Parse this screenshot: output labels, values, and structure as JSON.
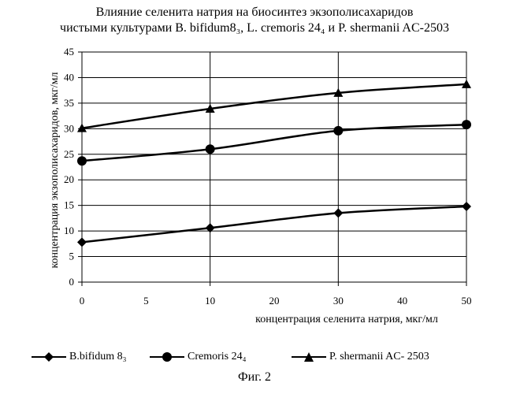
{
  "chart_data": {
    "type": "line",
    "title_lines": [
      "Влияние селенита натрия на биосинтез экзополисахаридов",
      "чистыми культурами B. bifidum8₃, L. cremoris 24₄ и P. shermanii AC-2503"
    ],
    "xlabel": "концентрация селенита натрия, мкг/мл",
    "ylabel": "концентрация экзополисахаридов, мкг/мл",
    "categories": [
      "0",
      "10",
      "30",
      "50"
    ],
    "x_ticks": [
      "0",
      "5",
      "10",
      "20",
      "30",
      "40",
      "50"
    ],
    "ylim": [
      0,
      45
    ],
    "y_ticks": [
      "0",
      "5",
      "10",
      "15",
      "20",
      "25",
      "30",
      "35",
      "40",
      "45"
    ],
    "grid": true,
    "legend_position": "bottom",
    "series": [
      {
        "name": "B.bifidum 8₃",
        "marker": "diamond",
        "values": [
          7.8,
          10.6,
          13.5,
          14.8
        ]
      },
      {
        "name": "Cremoris 24₄",
        "marker": "circle",
        "values": [
          23.7,
          26.0,
          29.6,
          30.8
        ]
      },
      {
        "name": "P. shermanii  AC- 2503",
        "marker": "triangle",
        "values": [
          30.1,
          33.9,
          37.0,
          38.7
        ]
      }
    ]
  },
  "figure_caption": "Фиг. 2"
}
